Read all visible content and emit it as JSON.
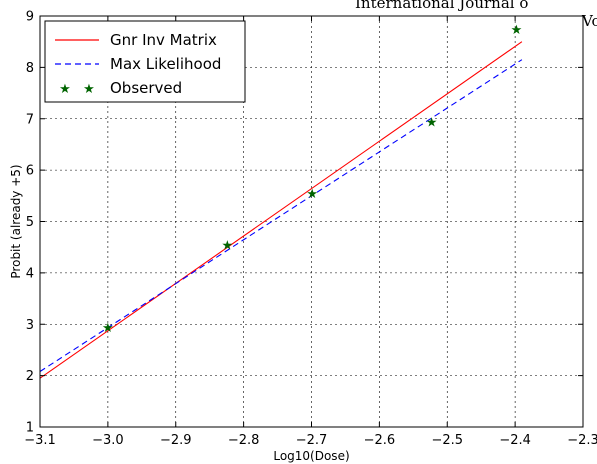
{
  "page": {
    "header_line1": "International Journal o",
    "header_line2": "Vo"
  },
  "chart_data": {
    "type": "line",
    "title": "",
    "xlabel": "Log10(Dose)",
    "ylabel": "Probit (already +5)",
    "xlim": [
      -3.1,
      -2.3
    ],
    "ylim": [
      1,
      9
    ],
    "xticks": [
      -3.1,
      -3.0,
      -2.9,
      -2.8,
      -2.7,
      -2.6,
      -2.5,
      -2.4,
      -2.3
    ],
    "xtick_labels": [
      "−3.1",
      "−3.0",
      "−2.9",
      "−2.8",
      "−2.7",
      "−2.6",
      "−2.5",
      "−2.4",
      "−2.3"
    ],
    "yticks": [
      1,
      2,
      3,
      4,
      5,
      6,
      7,
      8,
      9
    ],
    "ytick_labels": [
      "1",
      "2",
      "3",
      "4",
      "5",
      "6",
      "7",
      "8",
      "9"
    ],
    "grid": true,
    "legend_position": "top-left",
    "series": [
      {
        "name": "Gnr Inv Matrix",
        "style": "solid",
        "color": "#ff0000",
        "x": [
          -3.1,
          -2.39
        ],
        "y": [
          1.95,
          8.5
        ]
      },
      {
        "name": "Max Likelihood",
        "style": "dashed",
        "color": "#0000ff",
        "x": [
          -3.1,
          -2.39
        ],
        "y": [
          2.08,
          8.15
        ]
      },
      {
        "name": "Observed",
        "style": "marker",
        "color": "#006400",
        "marker": "★",
        "x": [
          -3.0,
          -2.824,
          -2.699,
          -2.523,
          -2.398
        ],
        "y": [
          2.95,
          4.55,
          5.55,
          6.95,
          8.75
        ]
      }
    ]
  }
}
